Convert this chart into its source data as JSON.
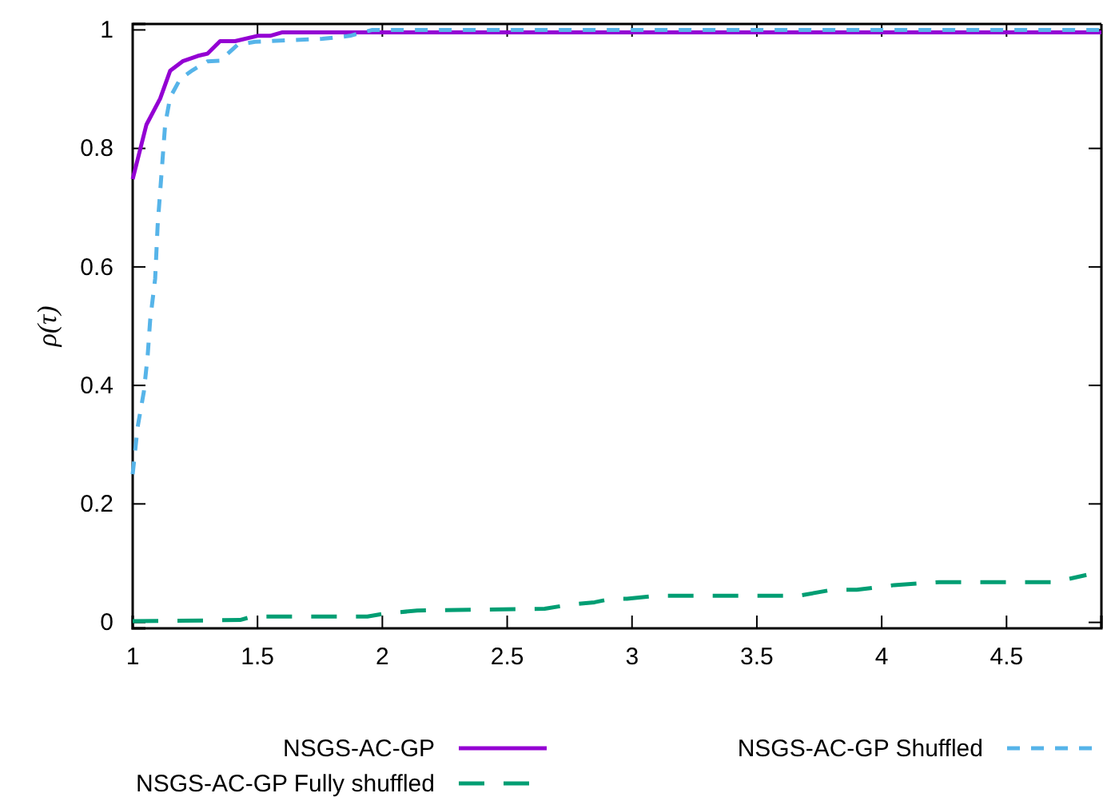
{
  "chart_data": {
    "type": "line",
    "ylabel": "ρ(τ)",
    "xlim": [
      1,
      4.88
    ],
    "ylim": [
      -0.01,
      1.01
    ],
    "xticks": [
      1,
      1.5,
      2,
      2.5,
      3,
      3.5,
      4,
      4.5
    ],
    "yticks": [
      0,
      0.2,
      0.4,
      0.6,
      0.8,
      1
    ],
    "grid": false,
    "legend": "bottom",
    "marker": "none",
    "series": [
      {
        "name": "NSGS-AC-GP",
        "color": "#9400d3",
        "line_style": "solid",
        "x": [
          1,
          1.055,
          1.11,
          1.15,
          1.2,
          1.26,
          1.3,
          1.35,
          1.41,
          1.5,
          1.55,
          1.6,
          4.88
        ],
        "values": [
          0.748,
          0.84,
          0.884,
          0.931,
          0.947,
          0.956,
          0.96,
          0.981,
          0.981,
          0.99,
          0.99,
          0.996,
          0.996
        ]
      },
      {
        "name": "NSGS-AC-GP Shuffled",
        "color": "#56b4e9",
        "line_style": "dashed",
        "x": [
          1,
          1.02,
          1.045,
          1.06,
          1.07,
          1.09,
          1.1,
          1.13,
          1.15,
          1.19,
          1.24,
          1.3,
          1.35,
          1.42,
          1.49,
          1.76,
          1.87,
          1.96,
          4.88
        ],
        "values": [
          0.25,
          0.33,
          0.39,
          0.45,
          0.51,
          0.58,
          0.67,
          0.84,
          0.886,
          0.917,
          0.932,
          0.947,
          0.948,
          0.975,
          0.98,
          0.985,
          0.99,
          1,
          1
        ]
      },
      {
        "name": "NSGS-AC-GP Fully shuffled",
        "color": "#009e73",
        "line_style": "dashed",
        "x": [
          1,
          1.43,
          1.48,
          1.94,
          2.01,
          2.14,
          2.65,
          2.75,
          2.85,
          2.92,
          2.98,
          3.1,
          3.67,
          3.8,
          3.9,
          4.05,
          4.23,
          4.69,
          4.82
        ],
        "values": [
          0.002,
          0.004,
          0.01,
          0.01,
          0.015,
          0.02,
          0.023,
          0.03,
          0.034,
          0.04,
          0.04,
          0.045,
          0.045,
          0.055,
          0.055,
          0.063,
          0.068,
          0.068,
          0.08
        ]
      }
    ]
  }
}
